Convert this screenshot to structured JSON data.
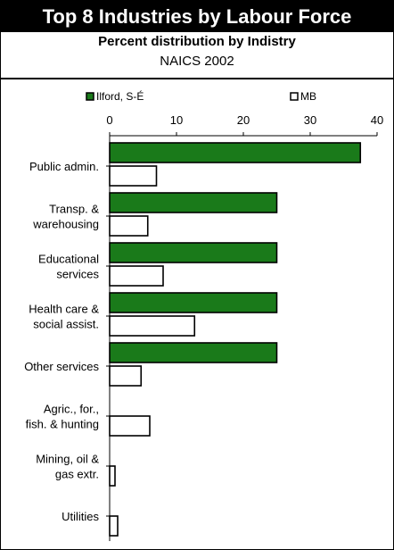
{
  "header": {
    "title": "Top 8 Industries by Labour Force",
    "subtitle": "Percent distribution by Indistry",
    "subtitle2": "NAICS 2002"
  },
  "colors": {
    "series1": "#1a7a1a",
    "series2": "#ffffff",
    "outline": "#000000"
  },
  "chart_data": {
    "type": "bar",
    "orientation": "horizontal",
    "categories": [
      [
        "Public admin."
      ],
      [
        "Transp. &",
        "warehousing"
      ],
      [
        "Educational",
        "services"
      ],
      [
        "Health care &",
        "social assist."
      ],
      [
        "Other services"
      ],
      [
        "Agric., for.,",
        "fish. & hunting"
      ],
      [
        "Mining, oil &",
        "gas extr."
      ],
      [
        "Utilities"
      ]
    ],
    "series": [
      {
        "name": "Ilford, S-É",
        "values": [
          37.5,
          25,
          25,
          25,
          25,
          0,
          0,
          0
        ]
      },
      {
        "name": "MB",
        "values": [
          7,
          5.7,
          8,
          12.7,
          4.7,
          6,
          0.8,
          1.2
        ]
      }
    ],
    "xlim": [
      0,
      40
    ],
    "xticks": [
      0,
      10,
      20,
      30,
      40
    ],
    "legend_position": "top",
    "xaxis_position": "top",
    "grid": false
  }
}
